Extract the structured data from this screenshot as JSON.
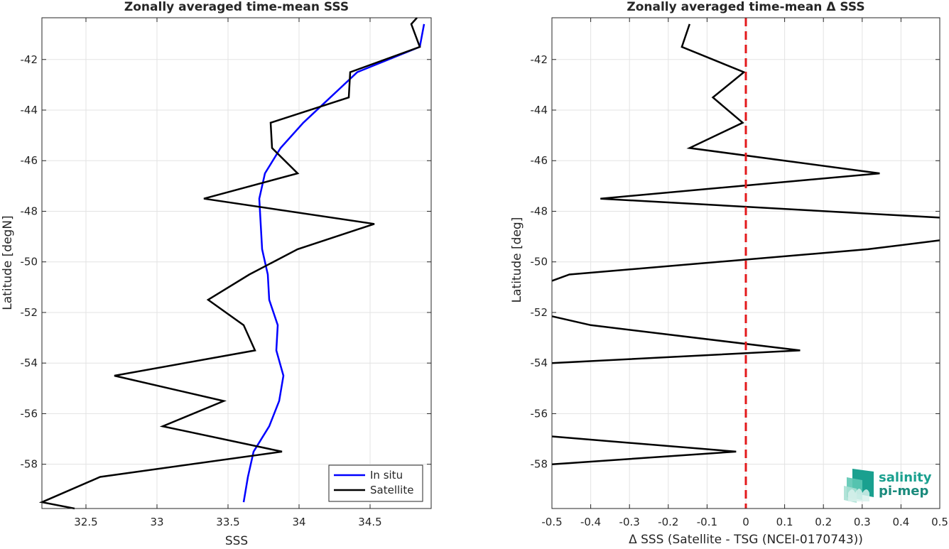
{
  "chart_data": [
    {
      "type": "line",
      "title": "Zonally averaged time-mean SSS",
      "xlabel": "SSS",
      "ylabel": "Latitude [degN]",
      "xlim": [
        32.19,
        34.93
      ],
      "ylim": [
        -59.75,
        -40.35
      ],
      "x_ticks": [
        32.5,
        33,
        33.5,
        34,
        34.5
      ],
      "y_ticks": [
        -58,
        -56,
        -54,
        -52,
        -50,
        -48,
        -46,
        -44,
        -42
      ],
      "grid": true,
      "legend_position": "bottom-right",
      "series": [
        {
          "name": "In situ",
          "color": "#0000ff",
          "x": [
            34.88,
            34.85,
            34.41,
            34.22,
            34.03,
            33.87,
            33.76,
            33.72,
            33.73,
            33.74,
            33.78,
            33.79,
            33.85,
            33.84,
            33.89,
            33.86,
            33.79,
            33.68,
            33.64,
            33.61
          ],
          "y": [
            -40.6,
            -41.5,
            -42.5,
            -43.5,
            -44.5,
            -45.5,
            -46.5,
            -47.5,
            -48.5,
            -49.5,
            -50.5,
            -51.5,
            -52.5,
            -53.5,
            -54.5,
            -55.5,
            -56.5,
            -57.5,
            -58.5,
            -59.5
          ]
        },
        {
          "name": "Satellite",
          "color": "#000000",
          "x": [
            34.83,
            34.79,
            34.85,
            34.36,
            34.35,
            33.8,
            33.81,
            33.99,
            33.33,
            34.53,
            33.99,
            33.65,
            33.36,
            33.61,
            33.69,
            32.7,
            33.47,
            33.04,
            33.88,
            32.6,
            32.19,
            32.42
          ],
          "y": [
            -40.35,
            -40.6,
            -41.5,
            -42.5,
            -43.5,
            -44.5,
            -45.5,
            -46.5,
            -47.5,
            -48.5,
            -49.5,
            -50.5,
            -51.5,
            -52.5,
            -53.5,
            -54.5,
            -55.5,
            -56.5,
            -57.5,
            -58.5,
            -59.5,
            -59.75
          ]
        }
      ]
    },
    {
      "type": "line",
      "title": "Zonally averaged time-mean Δ SSS",
      "xlabel": "Δ SSS (Satellite - TSG (NCEI-0170743))",
      "ylabel": "Latitude [deg]",
      "xlim": [
        -0.5,
        0.5
      ],
      "ylim": [
        -59.75,
        -40.35
      ],
      "x_ticks": [
        -0.5,
        -0.4,
        -0.3,
        -0.2,
        -0.1,
        0,
        0.1,
        0.2,
        0.3,
        0.4,
        0.5
      ],
      "x_tick_labels": [
        "-0.5",
        "-0.4",
        "-0.3",
        "-0.2",
        "-0.1",
        "0",
        "0.1",
        "0.2",
        "0.3",
        "0.4",
        "0.5"
      ],
      "y_ticks": [
        -58,
        -56,
        -54,
        -52,
        -50,
        -48,
        -46,
        -44,
        -42
      ],
      "grid": true,
      "reference_line": {
        "x": 0,
        "color": "#e31a1c",
        "style": "dashed"
      },
      "series": [
        {
          "color": "#000000",
          "segments": [
            {
              "x": [
                -0.145,
                -0.165,
                -0.005,
                -0.085,
                -0.008,
                -0.145,
                0.345,
                -0.375,
                0.5
              ],
              "y": [
                -40.6,
                -41.5,
                -42.5,
                -43.5,
                -44.5,
                -45.5,
                -46.5,
                -47.5,
                -48.25
              ]
            },
            {
              "x": [
                0.5,
                0.315,
                -0.455,
                -0.5
              ],
              "y": [
                -49.15,
                -49.5,
                -50.5,
                -50.75
              ]
            },
            {
              "x": [
                -0.5,
                -0.4,
                0.14,
                -0.5
              ],
              "y": [
                -52.15,
                -52.5,
                -53.5,
                -54.0
              ]
            },
            {
              "x": [
                -0.5,
                -0.025,
                -0.5
              ],
              "y": [
                -56.9,
                -57.5,
                -58.0
              ]
            }
          ]
        }
      ]
    }
  ],
  "logo": {
    "line1": "salinity",
    "line2": "pi-mep"
  }
}
